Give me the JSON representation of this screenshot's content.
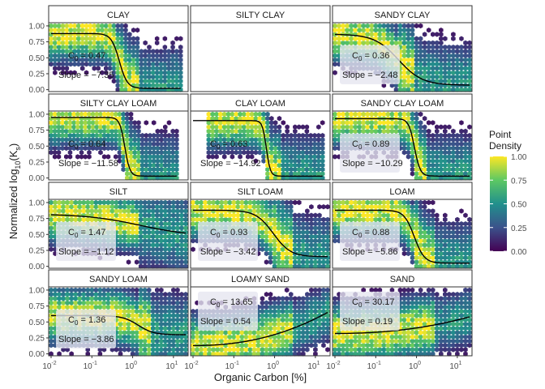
{
  "chart_data": {
    "type": "heatmap",
    "facet_layout": {
      "rows": 4,
      "cols": 3
    },
    "xlabel_main": "Organic Carbon [%]",
    "ylabel_main": "Normalized log",
    "ylabel_sub": "10",
    "ylabel_paren_open": "(K",
    "ylabel_paren_sub": "s",
    "ylabel_paren_close": ")",
    "x_scale": "log10",
    "xlim": [
      0.01,
      20
    ],
    "ylim": [
      -0.03,
      1.05
    ],
    "x_ticks": [
      {
        "base": "10",
        "exp": "-2",
        "value": 0.01
      },
      {
        "base": "10",
        "exp": "-1",
        "value": 0.1
      },
      {
        "base": "10",
        "exp": "0",
        "value": 1
      },
      {
        "base": "10",
        "exp": "1",
        "value": 10
      }
    ],
    "y_ticks": [
      "0.00",
      "0.25",
      "0.50",
      "0.75",
      "1.00"
    ],
    "y_tick_values": [
      0,
      0.25,
      0.5,
      0.75,
      1.0
    ],
    "legend": {
      "title_line1": "Point",
      "title_line2": "Density",
      "labels": [
        "1.00",
        "0.75",
        "0.50",
        "0.25",
        "0.00"
      ],
      "label_values": [
        1.0,
        0.75,
        0.5,
        0.25,
        0.0
      ],
      "colors": [
        "#440154",
        "#3b528b",
        "#21908c",
        "#5dc863",
        "#fde725"
      ]
    },
    "curve_color": "#000000",
    "panels": [
      {
        "name": "CLAY",
        "empty": false,
        "c0": "0.47",
        "slope": "−7.35",
        "c0_value": 0.47,
        "slope_value": -7.35,
        "y_max": 0.88,
        "y_min": 0.02,
        "ann_y": 0.2,
        "ann_box": false,
        "x_lo": 0.01,
        "x_hi": 15,
        "x_dense_hi": 0.5
      },
      {
        "name": "SILTY CLAY",
        "empty": true
      },
      {
        "name": "SANDY CLAY",
        "empty": false,
        "c0": "0.36",
        "slope": "−2.48",
        "c0_value": 0.36,
        "slope_value": -2.48,
        "y_max": 0.87,
        "y_min": 0.07,
        "ann_y": 0.2,
        "ann_box": true,
        "x_lo": 0.01,
        "x_hi": 20,
        "x_dense_hi": 0.3
      },
      {
        "name": "SILTY CLAY LOAM",
        "empty": false,
        "c0": "0.64",
        "slope": "−11.58",
        "c0_value": 0.64,
        "slope_value": -11.58,
        "y_max": 0.95,
        "y_min": 0.03,
        "ann_y": 0.25,
        "ann_box": false,
        "x_lo": 0.01,
        "x_hi": 12,
        "x_dense_hi": 0.5
      },
      {
        "name": "CLAY LOAM",
        "empty": false,
        "c0": "0.63",
        "slope": "−14.92",
        "c0_value": 0.63,
        "slope_value": -14.92,
        "y_max": 0.9,
        "y_min": 0.03,
        "ann_y": 0.25,
        "ann_box": false,
        "x_lo": 0.02,
        "x_hi": 15,
        "x_dense_hi": 0.5
      },
      {
        "name": "SANDY CLAY LOAM",
        "empty": false,
        "c0": "0.89",
        "slope": "−10.29",
        "c0_value": 0.89,
        "slope_value": -10.29,
        "y_max": 0.93,
        "y_min": 0.03,
        "ann_y": 0.25,
        "ann_box": true,
        "x_lo": 0.01,
        "x_hi": 20,
        "x_dense_hi": 0.6
      },
      {
        "name": "SILT",
        "empty": false,
        "c0": "1.47",
        "slope": "−1.12",
        "c0_value": 1.47,
        "slope_value": -1.12,
        "y_max": 0.82,
        "y_min": 0.47,
        "ann_y": 0.2,
        "ann_box": true,
        "x_lo": 0.01,
        "x_hi": 20,
        "x_dense_hi": 0.5
      },
      {
        "name": "SILT LOAM",
        "empty": false,
        "c0": "0.93",
        "slope": "−3.42",
        "c0_value": 0.93,
        "slope_value": -3.42,
        "y_max": 0.88,
        "y_min": 0.15,
        "ann_y": 0.2,
        "ann_box": true,
        "x_lo": 0.01,
        "x_hi": 20,
        "x_dense_hi": 1
      },
      {
        "name": "LOAM",
        "empty": false,
        "c0": "0.88",
        "slope": "−5.86",
        "c0_value": 0.88,
        "slope_value": -5.86,
        "y_max": 0.88,
        "y_min": 0.05,
        "ann_y": 0.2,
        "ann_box": true,
        "x_lo": 0.01,
        "x_hi": 20,
        "x_dense_hi": 1
      },
      {
        "name": "SANDY LOAM",
        "empty": false,
        "c0": "1.36",
        "slope": "−3.86",
        "c0_value": 1.36,
        "slope_value": -3.86,
        "y_max": 0.6,
        "y_min": 0.3,
        "ann_y": 0.2,
        "ann_box": true,
        "x_lo": 0.01,
        "x_hi": 20,
        "x_dense_hi": 1
      },
      {
        "name": "LOAMY SAND",
        "empty": false,
        "c0": "13.65",
        "slope": "0.54",
        "c0_value": 13.65,
        "slope_value": 0.54,
        "y_max": 0.65,
        "y_min": 0.13,
        "ann_y": 0.7,
        "ann_box": true,
        "x_lo": 0.01,
        "x_hi": 20,
        "x_dense_hi": 1
      },
      {
        "name": "SAND",
        "empty": false,
        "c0": "30.17",
        "slope": "0.19",
        "c0_value": 30.17,
        "slope_value": 0.19,
        "y_max": 0.58,
        "y_min": 0.32,
        "ann_y": 0.7,
        "ann_box": true,
        "x_lo": 0.01,
        "x_hi": 20,
        "x_dense_hi": 1
      }
    ]
  }
}
